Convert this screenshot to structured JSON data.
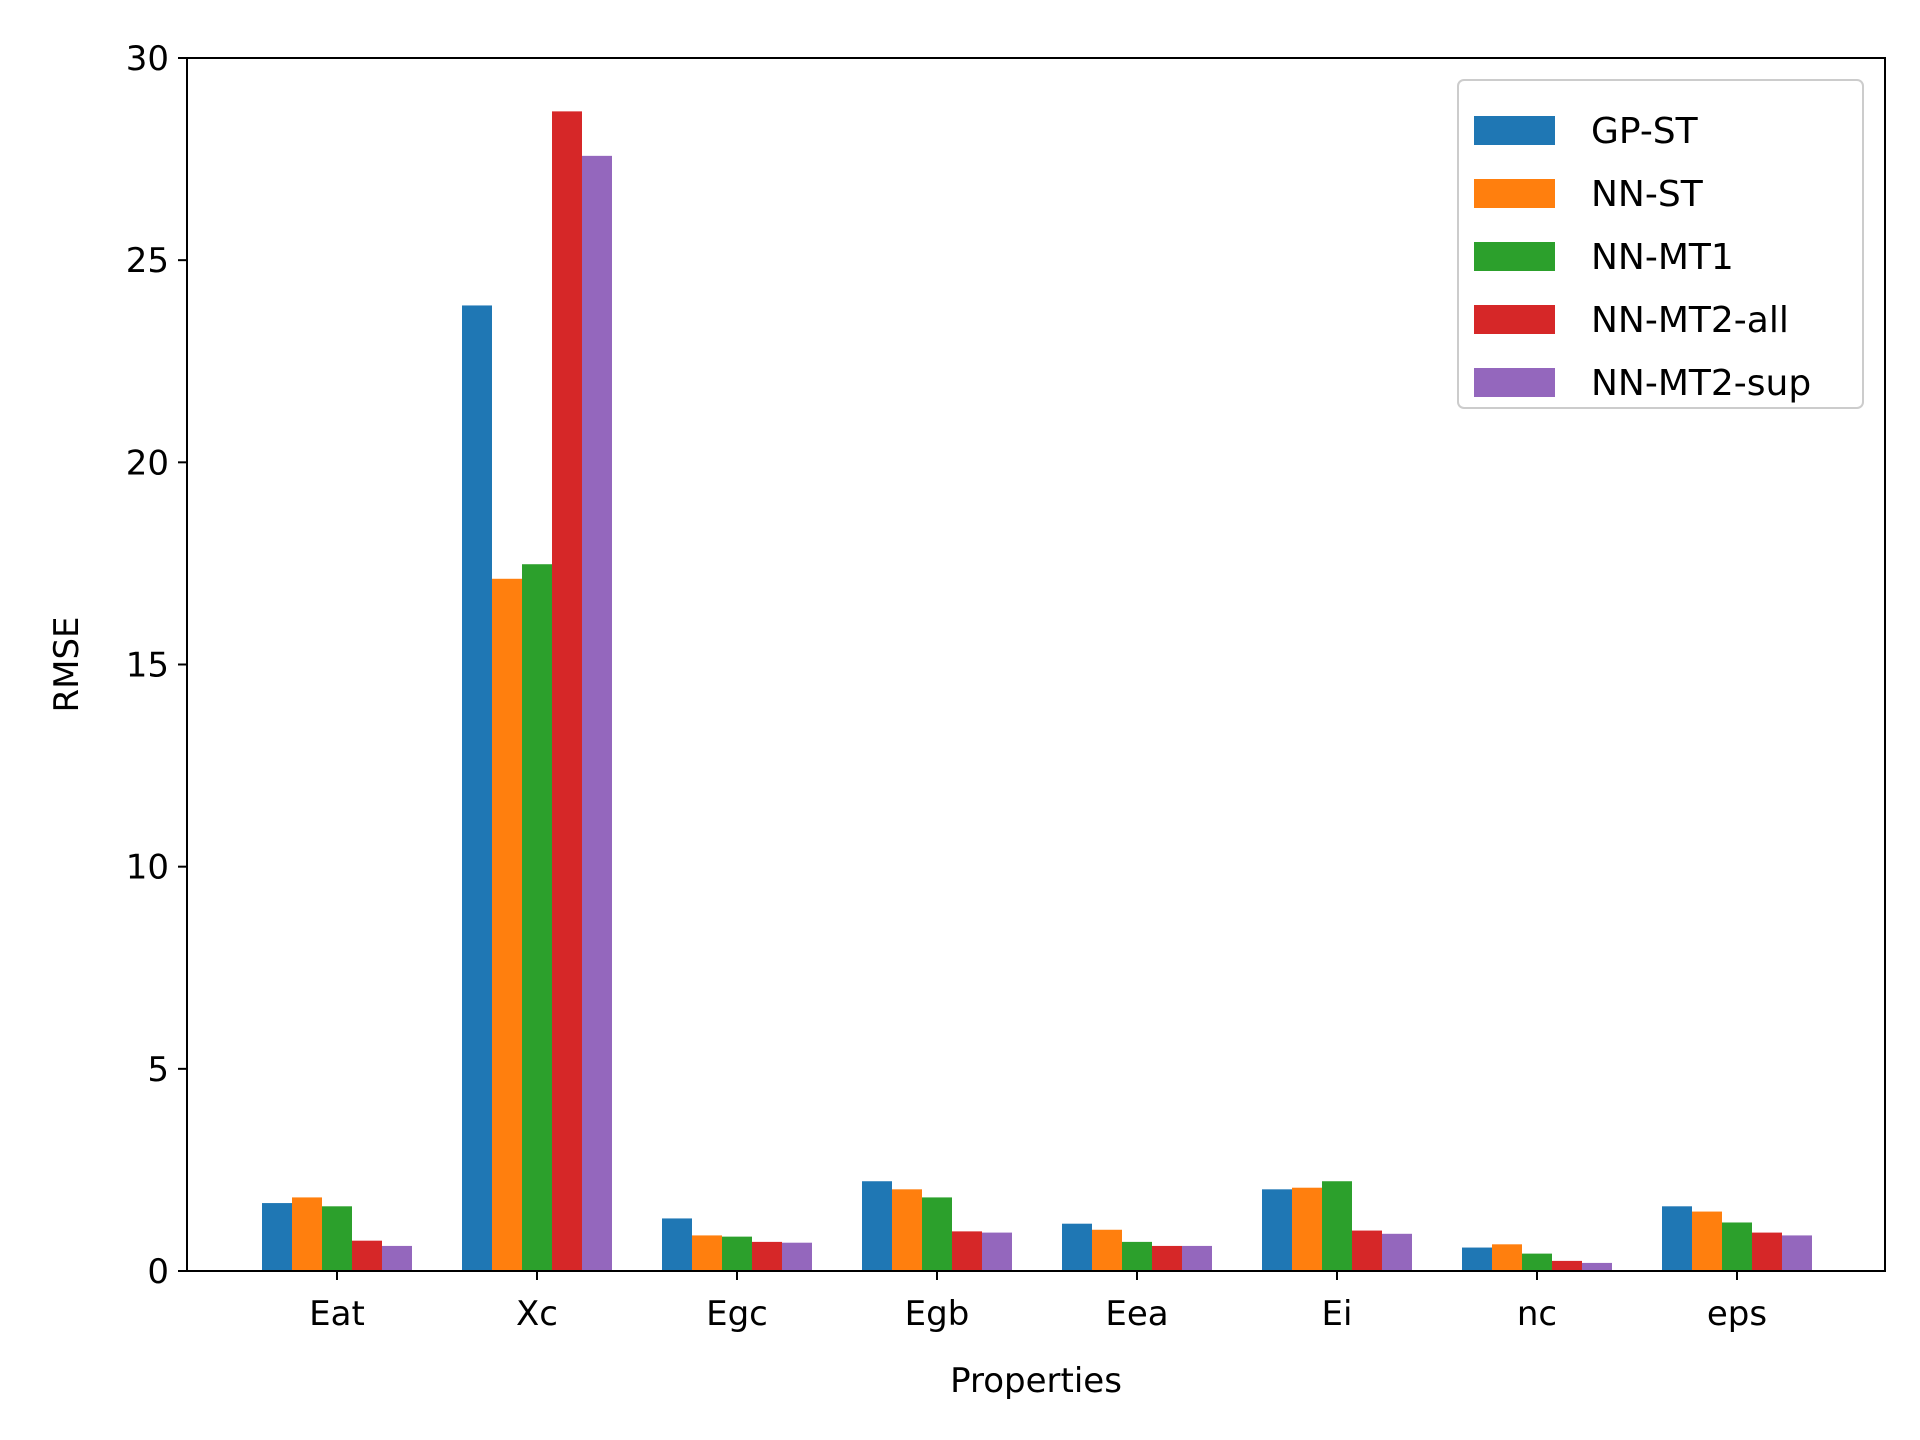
{
  "chart_data": {
    "type": "bar",
    "xlabel": "Properties",
    "ylabel": "RMSE",
    "ylim": [
      0,
      30
    ],
    "yticks": [
      0,
      5,
      10,
      15,
      20,
      25,
      30
    ],
    "grid": false,
    "legend_position": "top-right",
    "categories": [
      "Eat",
      "Xc",
      "Egc",
      "Egb",
      "Eea",
      "Ei",
      "nc",
      "eps"
    ],
    "series": [
      {
        "name": "GP-ST",
        "color": "#1f77b4",
        "values": [
          1.68,
          23.88,
          1.3,
          2.22,
          1.17,
          2.02,
          0.58,
          1.6
        ]
      },
      {
        "name": "NN-ST",
        "color": "#ff7f0e",
        "values": [
          1.82,
          17.12,
          0.88,
          2.02,
          1.02,
          2.06,
          0.66,
          1.47
        ]
      },
      {
        "name": "NN-MT1",
        "color": "#2ca02c",
        "values": [
          1.6,
          17.48,
          0.85,
          1.82,
          0.72,
          2.22,
          0.43,
          1.2
        ]
      },
      {
        "name": "NN-MT2-all",
        "color": "#d62728",
        "values": [
          0.75,
          28.68,
          0.72,
          0.98,
          0.62,
          1.0,
          0.25,
          0.95
        ]
      },
      {
        "name": "NN-MT2-sup",
        "color": "#9467bd",
        "values": [
          0.62,
          27.58,
          0.7,
          0.95,
          0.62,
          0.92,
          0.2,
          0.88
        ]
      }
    ]
  }
}
